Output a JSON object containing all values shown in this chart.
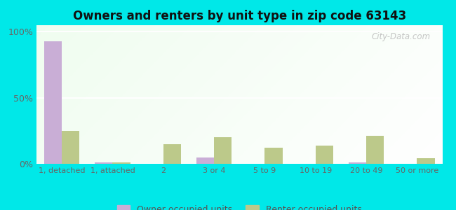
{
  "categories": [
    "1, detached",
    "1, attached",
    "2",
    "3 or 4",
    "5 to 9",
    "10 to 19",
    "20 to 49",
    "50 or more"
  ],
  "owner_values": [
    93,
    1,
    0,
    5,
    0,
    0,
    1,
    0
  ],
  "renter_values": [
    25,
    1,
    15,
    20,
    12,
    14,
    21,
    4
  ],
  "owner_color": "#c9aed6",
  "renter_color": "#bcc98a",
  "title": "Owners and renters by unit type in zip code 63143",
  "title_fontsize": 12,
  "ylim": [
    0,
    105
  ],
  "yticks": [
    0,
    50,
    100
  ],
  "ytick_labels": [
    "0%",
    "50%",
    "100%"
  ],
  "background_color": "#00e8e8",
  "legend_owner": "Owner occupied units",
  "legend_renter": "Renter occupied units",
  "bar_width": 0.35,
  "figure_width": 6.5,
  "figure_height": 3.0
}
